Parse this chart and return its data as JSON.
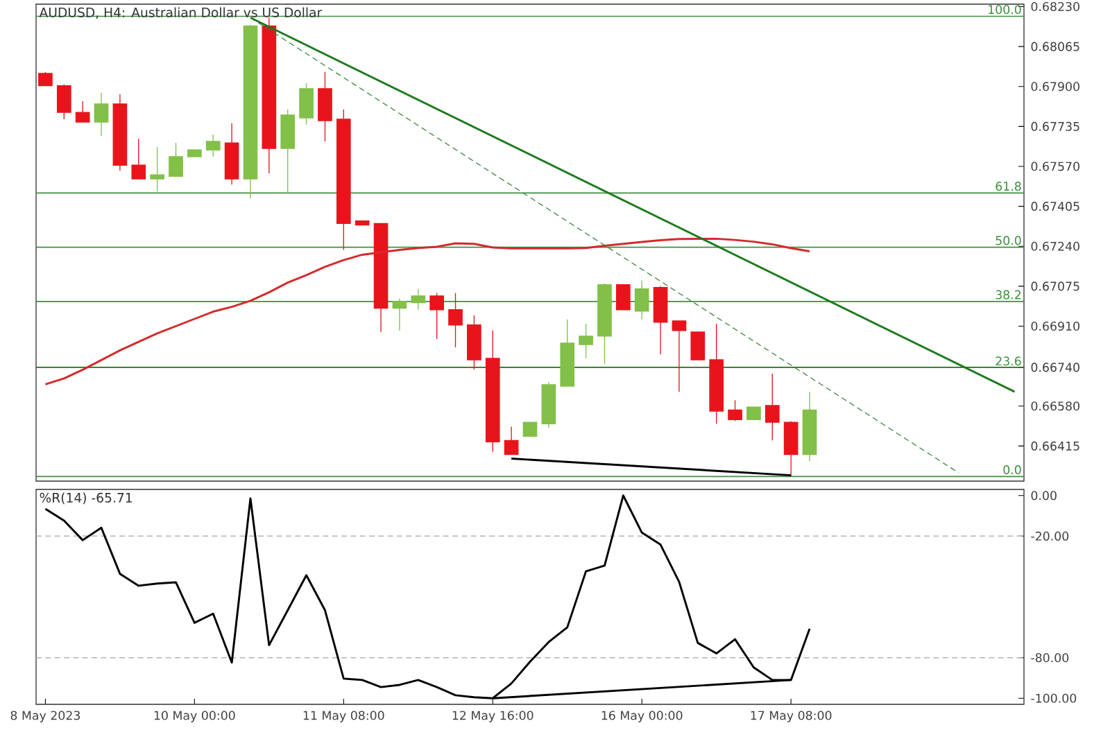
{
  "chart_data": [
    {
      "type": "candlestick",
      "title": "AUDUSD, H4:  Australian Dollar vs US Dollar",
      "categories": [
        null,
        null,
        null,
        null,
        null,
        null,
        null,
        null,
        null,
        null,
        null,
        null,
        null,
        null,
        null,
        null,
        null,
        null,
        null,
        null,
        null,
        null,
        null,
        null,
        null,
        null,
        null,
        null,
        null,
        null,
        null,
        null,
        null,
        null,
        null,
        null,
        null,
        null,
        null,
        null,
        null,
        null,
        null,
        null,
        null,
        null,
        null,
        null,
        null,
        null,
        null,
        null,
        null
      ],
      "ohlc": [
        [
          0.67954,
          0.6796,
          0.67903,
          0.67903
        ],
        [
          0.67903,
          0.67908,
          0.67765,
          0.67793
        ],
        [
          0.67793,
          0.67839,
          0.67753,
          0.67753
        ],
        [
          0.67753,
          0.67874,
          0.67696,
          0.67828
        ],
        [
          0.67828,
          0.67868,
          0.67552,
          0.67575
        ],
        [
          0.67575,
          0.67684,
          0.67518,
          0.67518
        ],
        [
          0.67518,
          0.6765,
          0.67466,
          0.67535
        ],
        [
          0.67529,
          0.67667,
          0.67529,
          0.6761
        ],
        [
          0.6761,
          0.67638,
          0.6761,
          0.67638
        ],
        [
          0.67638,
          0.67702,
          0.6761,
          0.67673
        ],
        [
          0.67667,
          0.67748,
          0.67495,
          0.67518
        ],
        [
          0.67518,
          0.68155,
          0.67437,
          0.6815
        ],
        [
          0.6815,
          0.68184,
          0.67541,
          0.67644
        ],
        [
          0.67644,
          0.67805,
          0.6746,
          0.67782
        ],
        [
          0.6777,
          0.67914,
          0.67742,
          0.67891
        ],
        [
          0.67891,
          0.6796,
          0.67673,
          0.67759
        ],
        [
          0.67765,
          0.67805,
          0.67225,
          0.67334
        ],
        [
          0.67345,
          0.67345,
          0.67328,
          0.67328
        ],
        [
          0.67334,
          0.67334,
          0.66886,
          0.66984
        ],
        [
          0.66984,
          0.67024,
          0.66892,
          0.67012
        ],
        [
          0.67007,
          0.67064,
          0.66978,
          0.67035
        ],
        [
          0.67035,
          0.67047,
          0.66857,
          0.66978
        ],
        [
          0.66978,
          0.67047,
          0.66823,
          0.66915
        ],
        [
          0.66915,
          0.66955,
          0.66731,
          0.66771
        ],
        [
          0.66777,
          0.66892,
          0.66392,
          0.66432
        ],
        [
          0.66438,
          0.66495,
          0.6638,
          0.6638
        ],
        [
          0.66455,
          0.66513,
          0.66455,
          0.66513
        ],
        [
          0.66507,
          0.66679,
          0.6649,
          0.66668
        ],
        [
          0.66662,
          0.66938,
          0.66662,
          0.6684
        ],
        [
          0.66834,
          0.6692,
          0.66777,
          0.66869
        ],
        [
          0.66869,
          0.67087,
          0.66754,
          0.67081
        ],
        [
          0.67081,
          0.67081,
          0.66978,
          0.66978
        ],
        [
          0.66972,
          0.67098,
          0.66938,
          0.67064
        ],
        [
          0.6707,
          0.67075,
          0.66794,
          0.66926
        ],
        [
          0.66932,
          0.66932,
          0.66639,
          0.66892
        ],
        [
          0.66886,
          0.66886,
          0.66771,
          0.66771
        ],
        [
          0.66771,
          0.6692,
          0.66507,
          0.66559
        ],
        [
          0.66564,
          0.66604,
          0.66518,
          0.66524
        ],
        [
          0.66524,
          0.66576,
          0.66524,
          0.66576
        ],
        [
          0.66582,
          0.66714,
          0.66438,
          0.66513
        ],
        [
          0.66513,
          0.66518,
          0.66289,
          0.6638
        ],
        [
          0.6638,
          0.66639,
          0.66352,
          0.66564
        ],
        null,
        null,
        null,
        null,
        null,
        null,
        null,
        null,
        null,
        null,
        null
      ],
      "colors": [
        "#e8141c",
        "#e8141c",
        "#e8141c",
        "#82c04a",
        "#e8141c",
        "#e8141c",
        "#82c04a",
        "#82c04a",
        "#82c04a",
        "#82c04a",
        "#e8141c",
        "#82c04a",
        "#e8141c",
        "#82c04a",
        "#82c04a",
        "#e8141c",
        "#e8141c",
        "#e8141c",
        "#e8141c",
        "#82c04a",
        "#82c04a",
        "#e8141c",
        "#e8141c",
        "#e8141c",
        "#e8141c",
        "#e8141c",
        "#82c04a",
        "#82c04a",
        "#82c04a",
        "#82c04a",
        "#82c04a",
        "#e8141c",
        "#82c04a",
        "#e8141c",
        "#e8141c",
        "#e8141c",
        "#e8141c",
        "#e8141c",
        "#82c04a",
        "#e8141c",
        "#e8141c",
        "#82c04a",
        null,
        null,
        null,
        null,
        null,
        null,
        null,
        null,
        null,
        null,
        null
      ],
      "series": [
        {
          "type": "line",
          "color": "#d42a2a",
          "values": [
            0.6667,
            0.66694,
            0.6673,
            0.6677,
            0.6681,
            0.66845,
            0.6688,
            0.6691,
            0.6694,
            0.6697,
            0.6699,
            0.67015,
            0.6705,
            0.6709,
            0.67121,
            0.67155,
            0.67183,
            0.67205,
            0.67215,
            0.67225,
            0.67233,
            0.67238,
            0.67252,
            0.6725,
            0.67235,
            0.67231,
            0.67231,
            0.67231,
            0.67231,
            0.67233,
            0.67242,
            0.6725,
            0.67258,
            0.67265,
            0.6727,
            0.67271,
            0.67271,
            0.67266,
            0.67259,
            0.67248,
            0.67232,
            0.67219,
            null,
            null,
            null,
            null,
            null,
            null,
            null,
            null,
            null,
            null,
            null
          ]
        },
        {
          "type": "line",
          "color": "#1e7a1e",
          "values": [
            null,
            null,
            null,
            null,
            null,
            null,
            null,
            null,
            null,
            null,
            null,
            0.68184,
            null,
            null,
            null,
            null,
            null,
            null,
            null,
            null,
            null,
            null,
            null,
            null,
            null,
            null,
            null,
            null,
            null,
            null,
            null,
            null,
            null,
            null,
            null,
            null,
            null,
            null,
            null,
            null,
            null,
            null,
            null,
            null,
            null,
            null,
            null,
            null,
            null,
            null,
            null,
            null,
            0.66639
          ]
        },
        {
          "type": "line",
          "color": "#2e7d32",
          "line_style": "dashed",
          "values": [
            null,
            null,
            null,
            null,
            null,
            null,
            null,
            null,
            null,
            null,
            null,
            0.68184,
            null,
            null,
            null,
            null,
            null,
            null,
            null,
            null,
            null,
            null,
            null,
            null,
            null,
            null,
            null,
            null,
            null,
            null,
            null,
            null,
            null,
            null,
            null,
            null,
            null,
            null,
            null,
            null,
            null,
            null,
            null,
            null,
            null,
            null,
            null,
            null,
            null,
            0.66304,
            null,
            null,
            null
          ]
        },
        {
          "type": "line",
          "color": "#000000",
          "values": [
            null,
            null,
            null,
            null,
            null,
            null,
            null,
            null,
            null,
            null,
            null,
            null,
            null,
            null,
            null,
            null,
            null,
            null,
            null,
            null,
            null,
            null,
            null,
            null,
            null,
            0.66363,
            null,
            null,
            null,
            null,
            null,
            null,
            null,
            null,
            null,
            null,
            null,
            null,
            null,
            null,
            0.66294,
            null,
            null,
            null,
            null,
            null,
            null,
            null,
            null,
            null,
            null,
            null,
            null
          ]
        }
      ],
      "annotations": [
        {
          "text": "100.0",
          "y": 0.6819
        },
        {
          "text": "61.8",
          "y": 0.6746
        },
        {
          "text": "50.0",
          "y": 0.67236
        },
        {
          "text": "38.2",
          "y": 0.67012
        },
        {
          "text": "23.6",
          "y": 0.66738
        },
        {
          "text": "0.0",
          "y": 0.66289
        }
      ],
      "ylim": [
        0.6627,
        0.6824
      ],
      "yticks": [
        {
          "value": 0.6823,
          "label": "0.68230"
        },
        {
          "value": 0.68065,
          "label": "0.68065"
        },
        {
          "value": 0.679,
          "label": "0.67900"
        },
        {
          "value": 0.67735,
          "label": "0.67735"
        },
        {
          "value": 0.6757,
          "label": "0.67570"
        },
        {
          "value": 0.67405,
          "label": "0.67405"
        },
        {
          "value": 0.6724,
          "label": "0.67240"
        },
        {
          "value": 0.67075,
          "label": "0.67075"
        },
        {
          "value": 0.6691,
          "label": "0.66910"
        },
        {
          "value": 0.6674,
          "label": "0.66740"
        },
        {
          "value": 0.6658,
          "label": "0.66580"
        },
        {
          "value": 0.66415,
          "label": "0.66415"
        }
      ],
      "ref_lines": [
        {
          "axis": "y",
          "value": 0.6819,
          "color": "#3f8f3f"
        },
        {
          "axis": "y",
          "value": 0.6746,
          "color": "#3f8f3f"
        },
        {
          "axis": "y",
          "value": 0.67236,
          "color": "#3f8f3f"
        },
        {
          "axis": "y",
          "value": 0.67012,
          "color": "#3f8f3f"
        },
        {
          "axis": "y",
          "value": 0.66289,
          "color": "#3f8f3f"
        },
        {
          "axis": "y",
          "value": 0.6674,
          "color": "#1e6e1e"
        }
      ]
    },
    {
      "type": "line",
      "title": "%R(14) -65.71",
      "categories": [
        "8 May 2023",
        null,
        null,
        null,
        null,
        null,
        null,
        null,
        "10 May 00:00",
        null,
        null,
        null,
        null,
        null,
        null,
        null,
        "11 May 08:00",
        null,
        null,
        null,
        null,
        null,
        null,
        null,
        "12 May 16:00",
        null,
        null,
        null,
        null,
        null,
        null,
        null,
        "16 May 00:00",
        null,
        null,
        null,
        null,
        null,
        null,
        null,
        "17 May 08:00",
        null,
        null,
        null,
        null,
        null,
        null,
        null,
        null,
        null,
        null,
        null,
        null
      ],
      "values": [
        -6.6,
        -12.4,
        -22,
        -15.9,
        -38.6,
        -44.5,
        -43.4,
        -42.8,
        -62.8,
        -58.3,
        -82.4,
        -1.4,
        -73.8,
        -56.6,
        -39.3,
        -56.6,
        -90.3,
        -91,
        -94.5,
        -93.4,
        -91,
        -94.5,
        -98.5,
        -99.5,
        -100,
        -92.7,
        -82,
        -72.3,
        -65,
        -37.4,
        -34.6,
        0,
        -18.3,
        -24.2,
        -42.6,
        -72.7,
        -77.9,
        -70.9,
        -84.8,
        -91,
        -91,
        -65.71,
        null,
        null,
        null,
        null,
        null,
        null,
        null,
        null,
        null,
        null,
        null
      ],
      "color": "#000000",
      "series": [
        {
          "type": "line",
          "color": "#000000",
          "values": [
            null,
            null,
            null,
            null,
            null,
            null,
            null,
            null,
            null,
            null,
            null,
            null,
            null,
            null,
            null,
            null,
            null,
            null,
            null,
            null,
            null,
            null,
            null,
            null,
            -100,
            null,
            null,
            null,
            null,
            null,
            null,
            null,
            null,
            null,
            null,
            null,
            null,
            null,
            null,
            null,
            -91,
            null,
            null,
            null,
            null,
            null,
            null,
            null,
            null,
            null,
            null,
            null,
            null
          ]
        }
      ],
      "ylim": [
        -103,
        3
      ],
      "yticks": [
        {
          "value": 0,
          "label": "0.00"
        },
        {
          "value": -20,
          "label": "-20.00"
        },
        {
          "value": -80,
          "label": "-80.00"
        },
        {
          "value": -100,
          "label": "-100.00"
        }
      ],
      "ref_lines": [
        {
          "axis": "y",
          "value": -20,
          "color": "#b4b4b4",
          "line_style": "dashed"
        },
        {
          "axis": "y",
          "value": -80,
          "color": "#b4b4b4",
          "line_style": "dashed"
        }
      ]
    }
  ]
}
